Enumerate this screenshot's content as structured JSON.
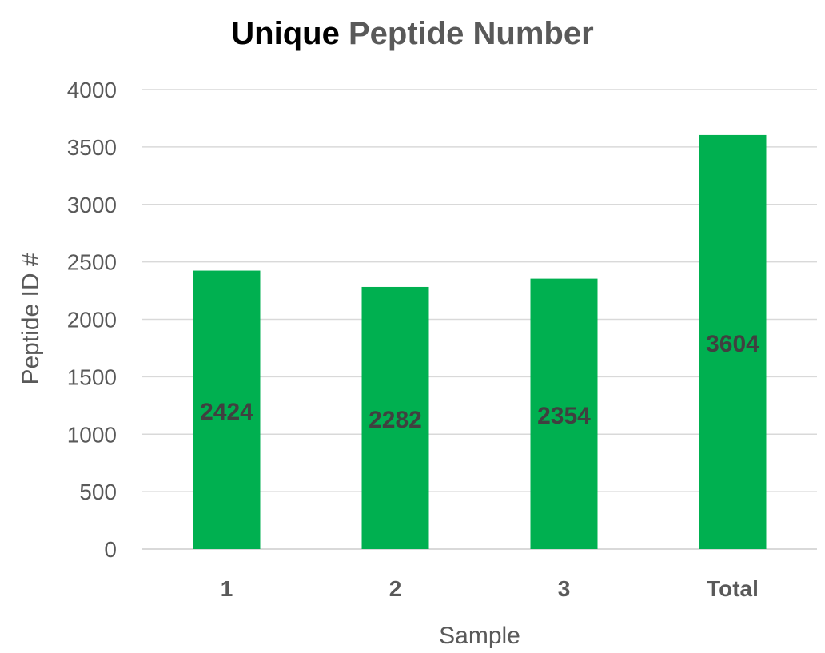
{
  "chart_data": {
    "type": "bar",
    "title_parts": [
      "Unique",
      " Peptide Number"
    ],
    "title": "Unique Peptide Number",
    "xlabel": "Sample",
    "ylabel": "Peptide ID #",
    "categories": [
      "1",
      "2",
      "3",
      "Total"
    ],
    "values": [
      2424,
      2282,
      2354,
      3604
    ],
    "data_labels": [
      "2424",
      "2282",
      "2354",
      "3604"
    ],
    "ylim": [
      0,
      4000
    ],
    "yticks": [
      0,
      500,
      1000,
      1500,
      2000,
      2500,
      3000,
      3500,
      4000
    ],
    "ytick_labels": [
      "0",
      "500",
      "1000",
      "1500",
      "2000",
      "2500",
      "3000",
      "3500",
      "4000"
    ],
    "grid": true,
    "legend": "none",
    "colors": {
      "bar": "#00b050",
      "grid": "#d9d9d9",
      "axis_text": "#595959",
      "title_first": "#000000",
      "title_rest": "#595959",
      "data_label": "#404040"
    }
  }
}
